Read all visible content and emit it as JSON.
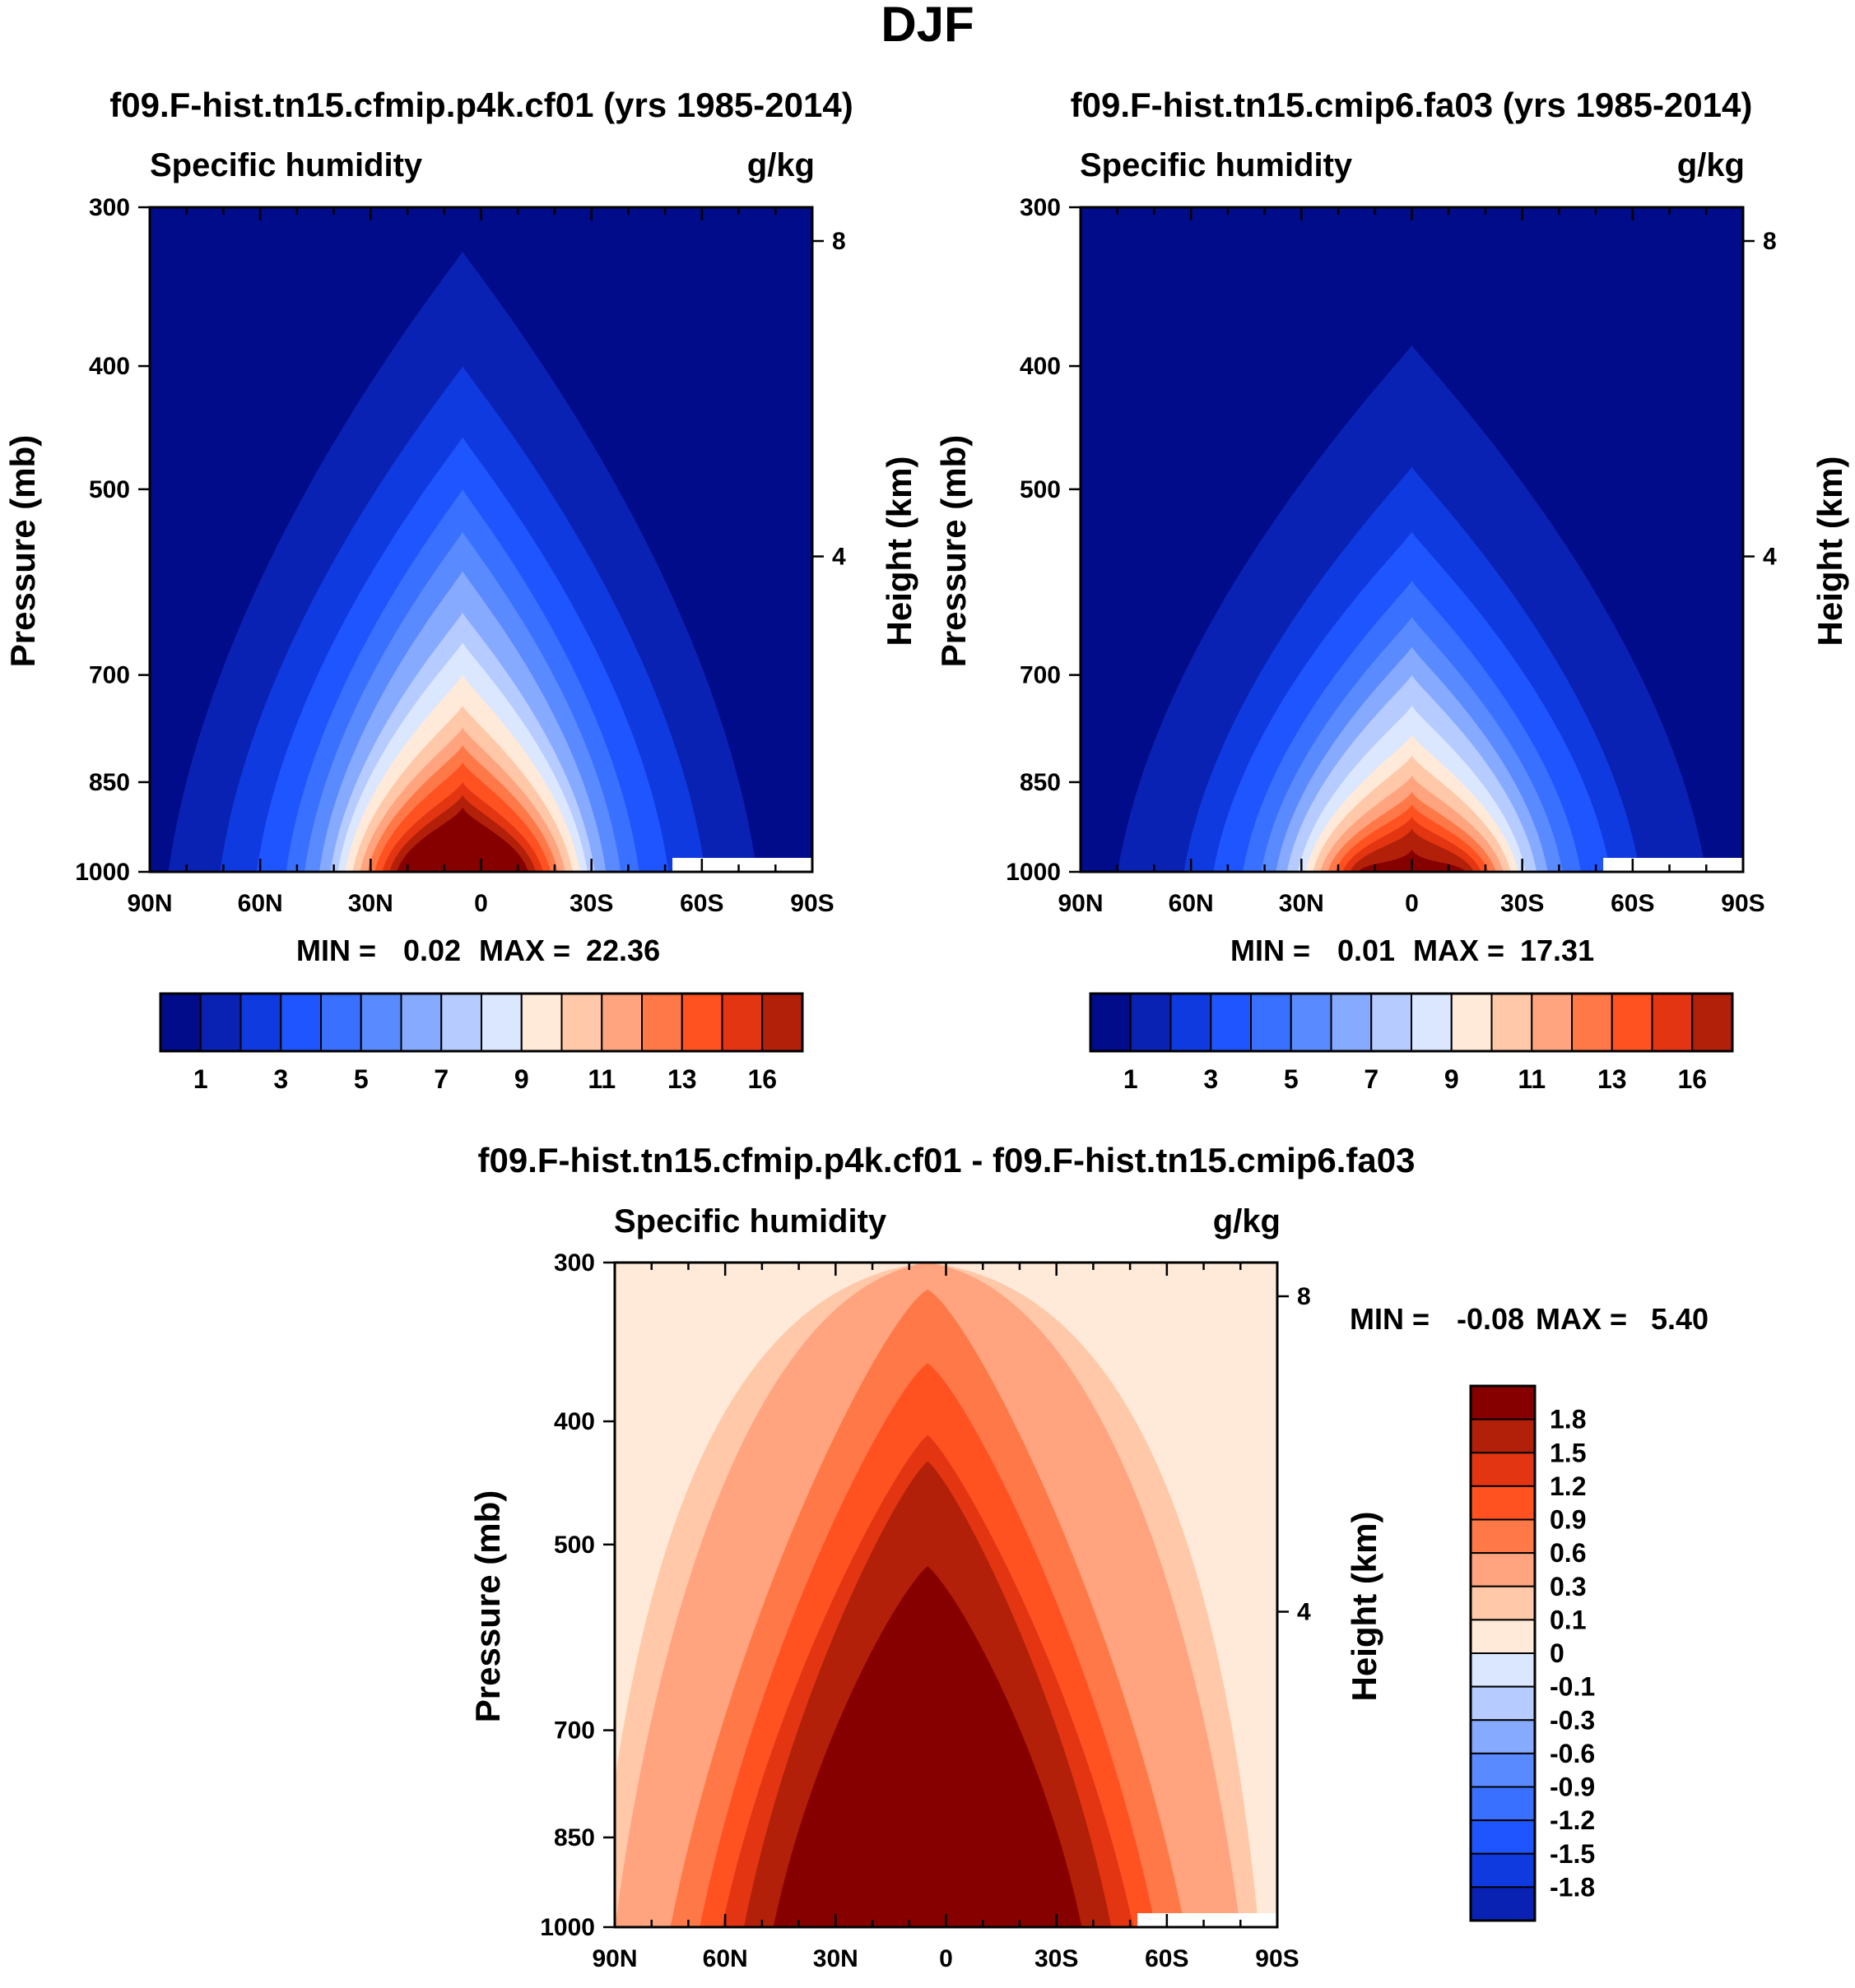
{
  "figure": {
    "title": "DJF"
  },
  "colors": {
    "abs": [
      "#000c8a",
      "#0a22b4",
      "#0f3ae0",
      "#1f55ff",
      "#3a70ff",
      "#5a8aff",
      "#86aaff",
      "#b6cbff",
      "#dbe7ff",
      "#ffe9d8",
      "#ffc8a8",
      "#ffa47e",
      "#ff7848",
      "#ff5220",
      "#e33512",
      "#b2200a",
      "#870000"
    ],
    "diff": [
      "#000c8a",
      "#0a22b4",
      "#0f3ae0",
      "#1f55ff",
      "#3a70ff",
      "#5a8aff",
      "#86aaff",
      "#b6cbff",
      "#dbe7ff",
      "#ffe9d8",
      "#ffc8a8",
      "#ffa47e",
      "#ff7848",
      "#ff5220",
      "#e33512",
      "#b2200a",
      "#870000"
    ]
  },
  "panels": [
    {
      "title": "f09.F-hist.tn15.cfmip.p4k.cf01 (yrs 1985-2014)",
      "left_label": "Specific humidity",
      "right_label": "g/kg",
      "stats": {
        "min_label": "MIN =",
        "min": "0.02",
        "max_label": "MAX =",
        "max": "22.36"
      },
      "ylabel": "Pressure (mb)",
      "ylabel_right": "Height (km)"
    },
    {
      "title": "f09.F-hist.tn15.cmip6.fa03 (yrs 1985-2014)",
      "left_label": "Specific humidity",
      "right_label": "g/kg",
      "stats": {
        "min_label": "MIN =",
        "min": "0.01",
        "max_label": "MAX =",
        "max": "17.31"
      },
      "ylabel": "Pressure (mb)",
      "ylabel_right": "Height (km)"
    },
    {
      "title": "f09.F-hist.tn15.cfmip.p4k.cf01 - f09.F-hist.tn15.cmip6.fa03",
      "left_label": "Specific humidity",
      "right_label": "g/kg",
      "stats": {
        "min_label": "MIN =",
        "min": "-0.08",
        "max_label": "MAX =",
        "max": "5.40"
      },
      "ylabel": "Pressure (mb)",
      "ylabel_right": "Height (km)"
    }
  ],
  "chart_data": [
    {
      "type": "heatmap",
      "title": "f09.F-hist.tn15.cfmip.p4k.cf01 (yrs 1985-2014)",
      "variable": "Specific humidity",
      "units": "g/kg",
      "xlabel": "",
      "ylabel": "Pressure (mb)",
      "ylabel_right": "Height (km)",
      "x_ticks": [
        "90N",
        "60N",
        "30N",
        "0",
        "30S",
        "60S",
        "90S"
      ],
      "x_values": [
        90,
        60,
        30,
        0,
        -30,
        -60,
        -90
      ],
      "xlim": [
        90,
        -90
      ],
      "y_ticks": [
        "300",
        "400",
        "500",
        "700",
        "850",
        "1000"
      ],
      "y_values": [
        300,
        400,
        500,
        700,
        850,
        1000
      ],
      "ylim": [
        1000,
        300
      ],
      "y_scale": "log",
      "y_right_ticks": [
        "8",
        "4"
      ],
      "y_right_values": [
        8,
        4
      ],
      "min": 0.02,
      "max": 22.36,
      "colorbar": {
        "orientation": "horizontal",
        "labels": [
          "1",
          "3",
          "5",
          "7",
          "9",
          "11",
          "13",
          "16"
        ]
      },
      "peak_latitude": 5,
      "surface_half_widths_deg": [
        80,
        66,
        56,
        48,
        43,
        39,
        36,
        34,
        32,
        30,
        28,
        26,
        24,
        22,
        20,
        18
      ],
      "level_tops_mb": [
        325,
        400,
        455,
        500,
        540,
        580,
        625,
        660,
        700,
        740,
        770,
        795,
        820,
        850,
        870,
        890
      ]
    },
    {
      "type": "heatmap",
      "title": "f09.F-hist.tn15.cmip6.fa03 (yrs 1985-2014)",
      "variable": "Specific humidity",
      "units": "g/kg",
      "xlabel": "",
      "ylabel": "Pressure (mb)",
      "ylabel_right": "Height (km)",
      "x_ticks": [
        "90N",
        "60N",
        "30N",
        "0",
        "30S",
        "60S",
        "90S"
      ],
      "x_values": [
        90,
        60,
        30,
        0,
        -30,
        -60,
        -90
      ],
      "xlim": [
        90,
        -90
      ],
      "y_ticks": [
        "300",
        "400",
        "500",
        "700",
        "850",
        "1000"
      ],
      "y_values": [
        300,
        400,
        500,
        700,
        850,
        1000
      ],
      "ylim": [
        1000,
        300
      ],
      "y_scale": "log",
      "y_right_ticks": [
        "8",
        "4"
      ],
      "y_right_values": [
        8,
        4
      ],
      "min": 0.01,
      "max": 17.31,
      "colorbar": {
        "orientation": "horizontal",
        "labels": [
          "1",
          "3",
          "5",
          "7",
          "9",
          "11",
          "13",
          "16"
        ]
      },
      "peak_latitude": 0,
      "surface_half_widths_deg": [
        80,
        62,
        54,
        46,
        41,
        37,
        34,
        31,
        29,
        27,
        25,
        23,
        21,
        19,
        17,
        15
      ],
      "level_tops_mb": [
        385,
        480,
        540,
        590,
        630,
        665,
        700,
        740,
        780,
        810,
        840,
        865,
        885,
        905,
        925,
        960
      ]
    },
    {
      "type": "heatmap",
      "title": "f09.F-hist.tn15.cfmip.p4k.cf01 - f09.F-hist.tn15.cmip6.fa03",
      "variable": "Specific humidity",
      "units": "g/kg",
      "xlabel": "",
      "ylabel": "Pressure (mb)",
      "ylabel_right": "Height (km)",
      "x_ticks": [
        "90N",
        "60N",
        "30N",
        "0",
        "30S",
        "60S",
        "90S"
      ],
      "x_values": [
        90,
        60,
        30,
        0,
        -30,
        -60,
        -90
      ],
      "xlim": [
        90,
        -90
      ],
      "y_ticks": [
        "300",
        "400",
        "500",
        "700",
        "850",
        "1000"
      ],
      "y_values": [
        300,
        400,
        500,
        700,
        850,
        1000
      ],
      "ylim": [
        1000,
        300
      ],
      "y_scale": "log",
      "y_right_ticks": [
        "8",
        "4"
      ],
      "y_right_values": [
        8,
        4
      ],
      "min": -0.08,
      "max": 5.4,
      "colorbar": {
        "orientation": "vertical",
        "labels": [
          "1.8",
          "1.5",
          "1.2",
          "0.9",
          "0.6",
          "0.3",
          "0.1",
          "0",
          "-0.1",
          "-0.3",
          "-0.6",
          "-0.9",
          "-1.2",
          "-1.5",
          "-1.8"
        ]
      },
      "peak_latitude": 5,
      "diff_levels": [
        {
          "color_index": 10,
          "half_width_top_deg": 60,
          "half_width_bottom_deg": 90,
          "top_mb": 300
        },
        {
          "color_index": 11,
          "half_width_top_deg": 45,
          "half_width_bottom_deg": 85,
          "top_mb": 300
        },
        {
          "color_index": 12,
          "half_width_top_deg": 12,
          "half_width_bottom_deg": 70,
          "top_mb": 315
        },
        {
          "color_index": 13,
          "half_width_top_deg": 10,
          "half_width_bottom_deg": 62,
          "top_mb": 360
        },
        {
          "color_index": 14,
          "half_width_top_deg": 8,
          "half_width_bottom_deg": 56,
          "top_mb": 410
        },
        {
          "color_index": 15,
          "half_width_top_deg": 8,
          "half_width_bottom_deg": 50,
          "top_mb": 430
        },
        {
          "color_index": 16,
          "half_width_top_deg": 8,
          "half_width_bottom_deg": 42,
          "top_mb": 520
        }
      ]
    }
  ]
}
